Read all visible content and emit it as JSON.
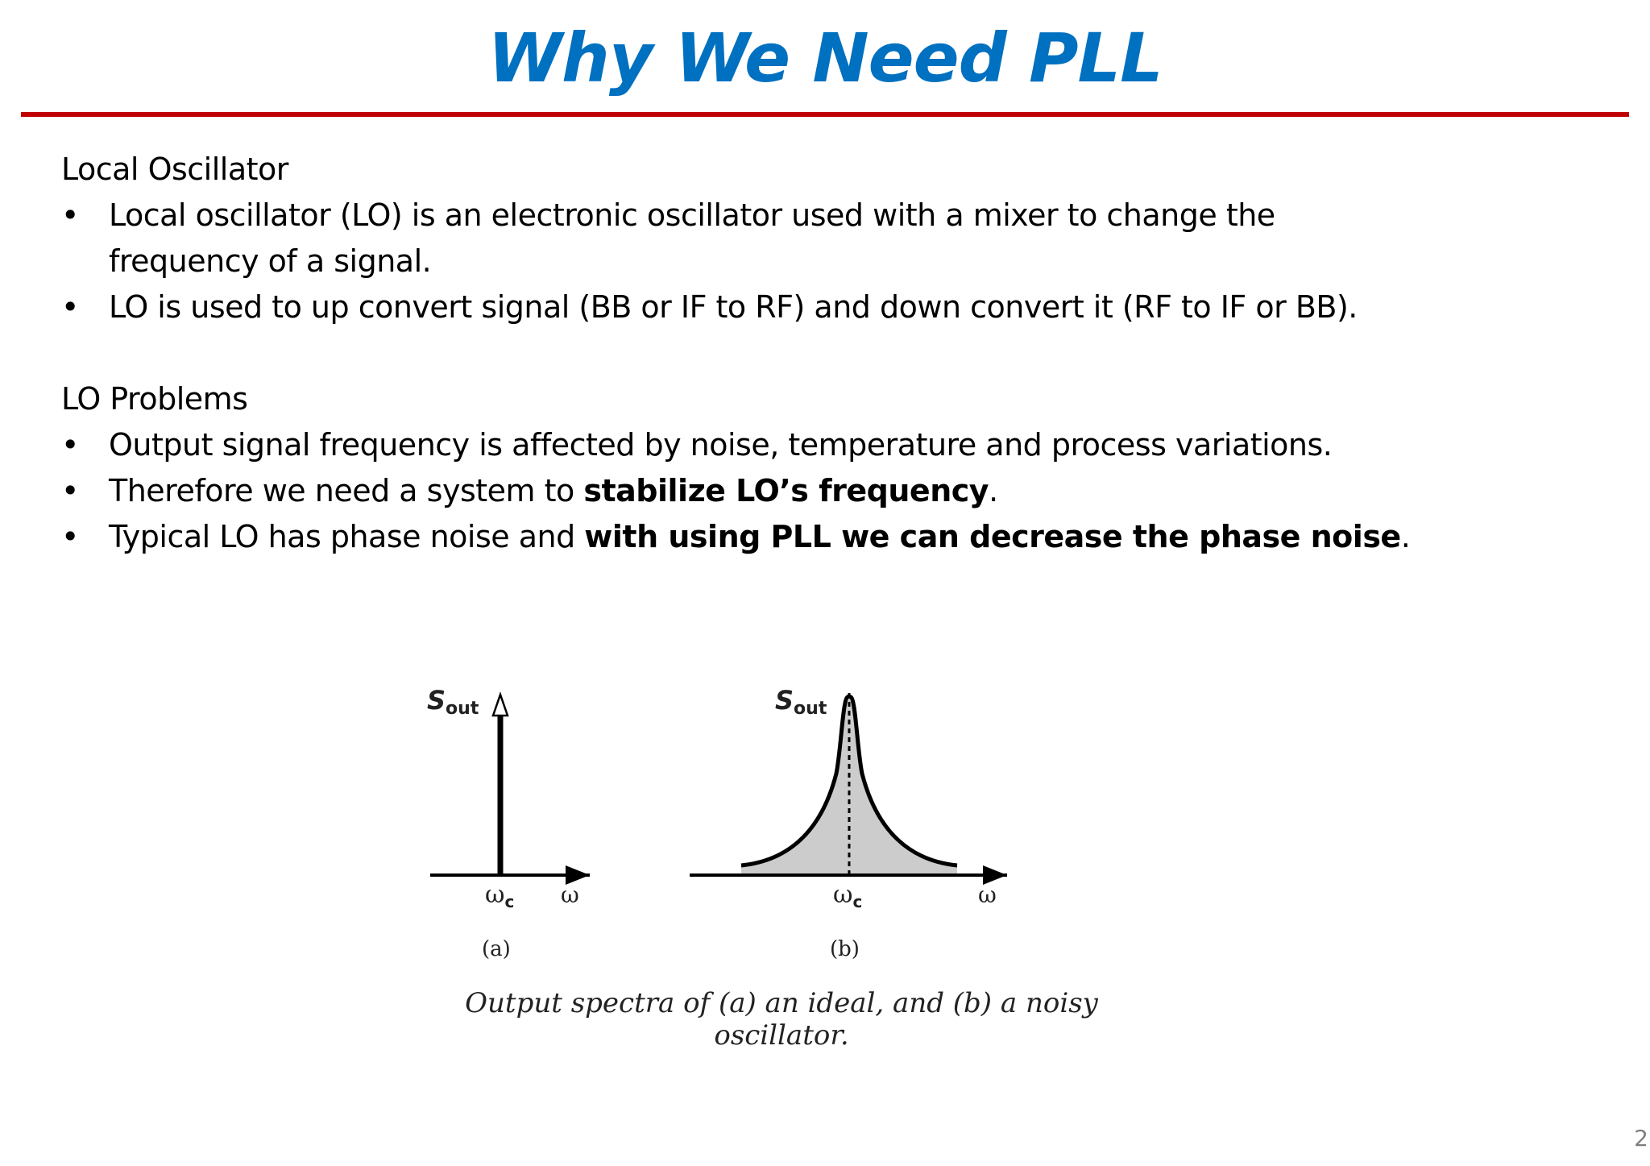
{
  "slide": {
    "title": "Why We Need PLL",
    "page_number": "2"
  },
  "section1": {
    "heading": "Local Oscillator",
    "bullets": [
      {
        "bullet": "•",
        "text_line1": "Local oscillator (LO) is an electronic oscillator used with a mixer to change the",
        "text_line2": "frequency of a signal."
      },
      {
        "bullet": "•",
        "text": "LO is used to up convert signal (BB or IF to RF) and down convert it (RF to IF or BB)."
      }
    ]
  },
  "section2": {
    "heading": "LO Problems",
    "bullets": [
      {
        "bullet": "•",
        "text": "Output signal frequency is affected by noise, temperature and process variations."
      },
      {
        "bullet": "•",
        "pre": "Therefore we need a system to ",
        "bold": "stabilize LO’s frequency",
        "post": "."
      },
      {
        "bullet": "•",
        "pre": "Typical LO has phase noise and ",
        "bold": "with using PLL we can decrease the phase noise",
        "post": "."
      }
    ]
  },
  "figure": {
    "panel_a": {
      "y_label_main": "S",
      "y_label_sub": "out",
      "x_tick": "ω",
      "x_tick_sub": "c",
      "x_axis_label": "ω",
      "panel_label": "(a)"
    },
    "panel_b": {
      "y_label_main": "S",
      "y_label_sub": "out",
      "x_tick": "ω",
      "x_tick_sub": "c",
      "x_axis_label": "ω",
      "panel_label": "(b)"
    },
    "caption": "Output spectra of (a) an ideal, and (b) a noisy oscillator.",
    "colors": {
      "fill": "#cccccc",
      "stroke": "#000000"
    }
  }
}
